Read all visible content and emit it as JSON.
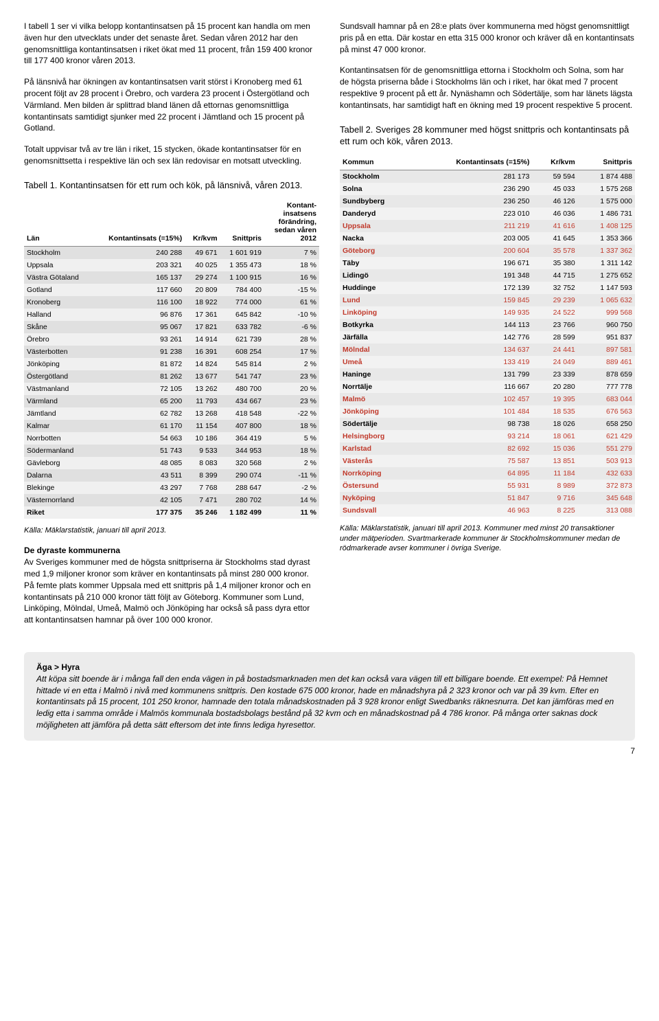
{
  "left": {
    "p1": "I tabell 1 ser vi vilka belopp kontantinsatsen på 15 procent kan handla om men även hur den utvecklats under det senaste året. Sedan våren 2012 har den genomsnittliga kontantinsatsen i riket ökat med 11 procent, från 159 400 kronor till 177 400 kronor våren 2013.",
    "p2": "På länsnivå har ökningen av kontantinsatsen varit störst i Kronoberg med 61 procent följt av 28 procent i Örebro, och vardera 23 procent i Östergötland och Värmland. Men bilden är splittrad bland länen då ettornas genomsnittliga kontantinsats samtidigt sjunker med 22 procent i Jämtland och 15 procent på Gotland.",
    "p3": "Totalt uppvisar två av tre län i riket, 15 stycken, ökade kontantinsatser för en genomsnittsetta i respektive län och sex län redovisar en motsatt utveckling.",
    "t1_title": "Tabell 1. Kontantinsatsen för ett rum och kök, på länsnivå, våren 2013.",
    "t1_headers": [
      "Län",
      "Kontantinsats (=15%)",
      "Kr/kvm",
      "Snittpris",
      "Kontant-insatsens förändring, sedan våren 2012"
    ],
    "t1_rows": [
      [
        "Stockholm",
        "240 288",
        "49 671",
        "1 601 919",
        "7 %"
      ],
      [
        "Uppsala",
        "203 321",
        "40 025",
        "1 355 473",
        "18 %"
      ],
      [
        "Västra Götaland",
        "165 137",
        "29 274",
        "1 100 915",
        "16 %"
      ],
      [
        "Gotland",
        "117 660",
        "20 809",
        "784 400",
        "-15 %"
      ],
      [
        "Kronoberg",
        "116 100",
        "18 922",
        "774 000",
        "61 %"
      ],
      [
        "Halland",
        "96 876",
        "17 361",
        "645 842",
        "-10 %"
      ],
      [
        "Skåne",
        "95 067",
        "17 821",
        "633 782",
        "-6 %"
      ],
      [
        "Örebro",
        "93 261",
        "14 914",
        "621 739",
        "28 %"
      ],
      [
        "Västerbotten",
        "91 238",
        "16 391",
        "608 254",
        "17 %"
      ],
      [
        "Jönköping",
        "81 872",
        "14 824",
        "545 814",
        "2 %"
      ],
      [
        "Östergötland",
        "81 262",
        "13 677",
        "541 747",
        "23 %"
      ],
      [
        "Västmanland",
        "72 105",
        "13 262",
        "480 700",
        "20 %"
      ],
      [
        "Värmland",
        "65 200",
        "11 793",
        "434 667",
        "23 %"
      ],
      [
        "Jämtland",
        "62 782",
        "13 268",
        "418 548",
        "-22 %"
      ],
      [
        "Kalmar",
        "61 170",
        "11 154",
        "407 800",
        "18 %"
      ],
      [
        "Norrbotten",
        "54 663",
        "10 186",
        "364 419",
        "5 %"
      ],
      [
        "Södermanland",
        "51 743",
        "9 533",
        "344 953",
        "18 %"
      ],
      [
        "Gävleborg",
        "48 085",
        "8 083",
        "320 568",
        "2 %"
      ],
      [
        "Dalarna",
        "43 511",
        "8 399",
        "290 074",
        "-11 %"
      ],
      [
        "Blekinge",
        "43 297",
        "7 768",
        "288 647",
        "-2 %"
      ],
      [
        "Västernorrland",
        "42 105",
        "7 471",
        "280 702",
        "14 %"
      ],
      [
        "Riket",
        "177 375",
        "35 246",
        "1 182 499",
        "11 %"
      ]
    ],
    "t1_source": "Källa: Mäklarstatistik, januari till april 2013.",
    "subhead": "De dyraste kommunerna",
    "p4": "Av Sveriges kommuner med de högsta snittpriserna är Stockholms stad dyrast med 1,9 miljoner kronor som kräver en kontantinsats på minst 280 000 kronor. På femte plats kommer Uppsala med ett snittpris på 1,4 miljoner kronor och en kontantinsats på 210 000 kronor tätt följt av Göteborg. Kommuner som Lund, Linköping, Mölndal, Umeå, Malmö och Jönköping har också så pass dyra ettor att kontantinsatsen hamnar på över 100 000 kronor."
  },
  "right": {
    "p1": "Sundsvall hamnar på en 28:e plats över kommunerna med högst genomsnittligt pris på en etta. Där kostar en etta 315 000 kronor och kräver då en kontantinsats på minst 47 000 kronor.",
    "p2": "Kontantinsatsen för de genomsnittliga ettorna i Stockholm och Solna, som har de högsta priserna både i Stockholms län och i riket, har ökat med 7 procent respektive 9 procent på ett år. Nynäshamn och Södertälje, som har länets lägsta kontantinsats, har samtidigt haft en ökning med 19 procent respektive 5 procent.",
    "t2_title": "Tabell 2. Sveriges 28 kommuner med högst snittpris och kontantinsats på ett rum och kök, våren 2013.",
    "t2_headers": [
      "Kommun",
      "Kontantinsats (=15%)",
      "Kr/kvm",
      "Snittpris"
    ],
    "t2_rows": [
      {
        "c": [
          "Stockholm",
          "281 173",
          "59 594",
          "1 874 488"
        ],
        "red": false
      },
      {
        "c": [
          "Solna",
          "236 290",
          "45 033",
          "1 575 268"
        ],
        "red": false
      },
      {
        "c": [
          "Sundbyberg",
          "236 250",
          "46 126",
          "1 575 000"
        ],
        "red": false
      },
      {
        "c": [
          "Danderyd",
          "223 010",
          "46 036",
          "1 486 731"
        ],
        "red": false
      },
      {
        "c": [
          "Uppsala",
          "211 219",
          "41 616",
          "1 408 125"
        ],
        "red": true
      },
      {
        "c": [
          "Nacka",
          "203 005",
          "41 645",
          "1 353 366"
        ],
        "red": false
      },
      {
        "c": [
          "Göteborg",
          "200 604",
          "35 578",
          "1 337 362"
        ],
        "red": true
      },
      {
        "c": [
          "Täby",
          "196 671",
          "35 380",
          "1 311 142"
        ],
        "red": false
      },
      {
        "c": [
          "Lidingö",
          "191 348",
          "44 715",
          "1 275 652"
        ],
        "red": false
      },
      {
        "c": [
          "Huddinge",
          "172 139",
          "32 752",
          "1 147 593"
        ],
        "red": false
      },
      {
        "c": [
          "Lund",
          "159 845",
          "29 239",
          "1 065 632"
        ],
        "red": true
      },
      {
        "c": [
          "Linköping",
          "149 935",
          "24 522",
          "999 568"
        ],
        "red": true
      },
      {
        "c": [
          "Botkyrka",
          "144 113",
          "23 766",
          "960 750"
        ],
        "red": false
      },
      {
        "c": [
          "Järfälla",
          "142 776",
          "28 599",
          "951 837"
        ],
        "red": false
      },
      {
        "c": [
          "Mölndal",
          "134 637",
          "24 441",
          "897 581"
        ],
        "red": true
      },
      {
        "c": [
          "Umeå",
          "133 419",
          "24 049",
          "889 461"
        ],
        "red": true
      },
      {
        "c": [
          "Haninge",
          "131 799",
          "23 339",
          "878 659"
        ],
        "red": false
      },
      {
        "c": [
          "Norrtälje",
          "116 667",
          "20 280",
          "777 778"
        ],
        "red": false
      },
      {
        "c": [
          "Malmö",
          "102 457",
          "19 395",
          "683 044"
        ],
        "red": true
      },
      {
        "c": [
          "Jönköping",
          "101 484",
          "18 535",
          "676 563"
        ],
        "red": true
      },
      {
        "c": [
          "Södertälje",
          "98 738",
          "18 026",
          "658 250"
        ],
        "red": false
      },
      {
        "c": [
          "Helsingborg",
          "93 214",
          "18 061",
          "621 429"
        ],
        "red": true
      },
      {
        "c": [
          "Karlstad",
          "82 692",
          "15 036",
          "551 279"
        ],
        "red": true
      },
      {
        "c": [
          "Västerås",
          "75 587",
          "13 851",
          "503 913"
        ],
        "red": true
      },
      {
        "c": [
          "Norrköping",
          "64 895",
          "11 184",
          "432 633"
        ],
        "red": true
      },
      {
        "c": [
          "Östersund",
          "55 931",
          "8 989",
          "372 873"
        ],
        "red": true
      },
      {
        "c": [
          "Nyköping",
          "51 847",
          "9 716",
          "345 648"
        ],
        "red": true
      },
      {
        "c": [
          "Sundsvall",
          "46 963",
          "8 225",
          "313 088"
        ],
        "red": true
      }
    ],
    "t2_source": "Källa: Mäklarstatistik, januari till april 2013. Kommuner med minst 20 transaktioner under mätperioden. Svartmarkerade kommuner är Stockholmskommuner medan de rödmarkerade avser kommuner i övriga Sverige."
  },
  "box": {
    "title": "Äga > Hyra",
    "text": "Att köpa sitt boende är i många fall den enda vägen in på bostadsmarknaden men det kan också vara vägen till ett billigare boende. Ett exempel: På Hemnet hittade vi en etta i Malmö i nivå med kommunens snittpris. Den kostade 675 000 kronor, hade en månadshyra på 2 323 kronor och var på 39 kvm. Efter en kontantinsats på 15 procent, 101 250 kronor, hamnade den totala månadskostnaden på 3 928 kronor enligt Swedbanks räknesnurra. Det kan jämföras med en ledig etta i samma område i Malmös kommunala bostadsbolags bestånd på 32 kvm och en månadskostnad på 4 786 kronor. På många orter saknas dock möjligheten att jämföra på detta sätt eftersom det inte finns lediga hyresettor."
  },
  "pagenum": "7"
}
